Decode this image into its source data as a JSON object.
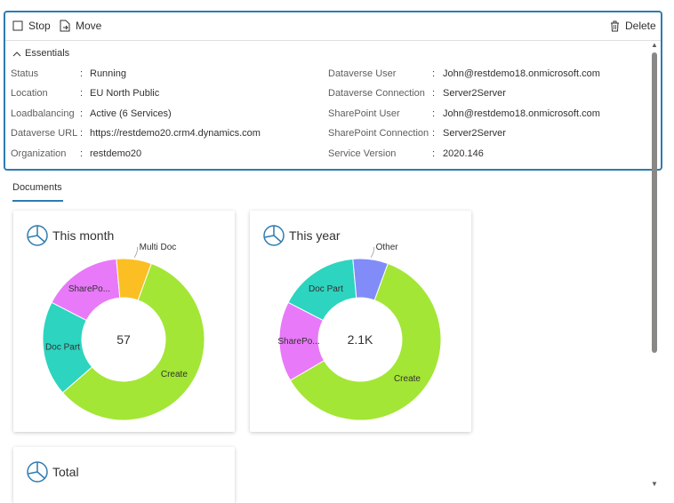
{
  "toolbar": {
    "stop_label": "Stop",
    "move_label": "Move",
    "delete_label": "Delete"
  },
  "essentials": {
    "title": "Essentials",
    "left": [
      {
        "key": "Status",
        "value": "Running"
      },
      {
        "key": "Location",
        "value": "EU North Public"
      },
      {
        "key": "Loadbalancing",
        "value": "Active (6 Services)"
      },
      {
        "key": "Dataverse URL",
        "value": "https://restdemo20.crm4.dynamics.com"
      },
      {
        "key": "Organization",
        "value": "restdemo20"
      }
    ],
    "right": [
      {
        "key": "Dataverse User",
        "value": "John@restdemo18.onmicrosoft.com"
      },
      {
        "key": "Dataverse Connection",
        "value": "Server2Server"
      },
      {
        "key": "SharePoint User",
        "value": "John@restdemo18.onmicrosoft.com"
      },
      {
        "key": "SharePoint Connection",
        "value": "Server2Server"
      },
      {
        "key": "Service Version",
        "value": "2020.146"
      }
    ]
  },
  "tab": {
    "label": "Documents"
  },
  "colors": {
    "accent": "#2e7cb0",
    "create": "#a3e635",
    "doc_part": "#2dd4bf",
    "sharepoint": "#e879f9",
    "multi_doc": "#fbbf24",
    "other": "#818cf8"
  },
  "cards": [
    {
      "title": "This month",
      "center": "57"
    },
    {
      "title": "This year",
      "center": "2.1K"
    },
    {
      "title": "Total"
    }
  ],
  "chart_data": [
    {
      "type": "pie",
      "title": "This month",
      "center_label": "57",
      "slices": [
        {
          "label": "Create",
          "share": 0.58,
          "color": "#a3e635"
        },
        {
          "label": "Doc Part",
          "share": 0.19,
          "color": "#2dd4bf"
        },
        {
          "label": "SharePo...",
          "share": 0.16,
          "color": "#e879f9"
        },
        {
          "label": "Multi Doc",
          "share": 0.07,
          "color": "#fbbf24"
        }
      ]
    },
    {
      "type": "pie",
      "title": "This year",
      "center_label": "2.1K",
      "slices": [
        {
          "label": "Create",
          "share": 0.61,
          "color": "#a3e635"
        },
        {
          "label": "SharePo...",
          "share": 0.16,
          "color": "#e879f9"
        },
        {
          "label": "Doc Part",
          "share": 0.16,
          "color": "#2dd4bf"
        },
        {
          "label": "Other",
          "share": 0.07,
          "color": "#818cf8"
        }
      ]
    }
  ]
}
